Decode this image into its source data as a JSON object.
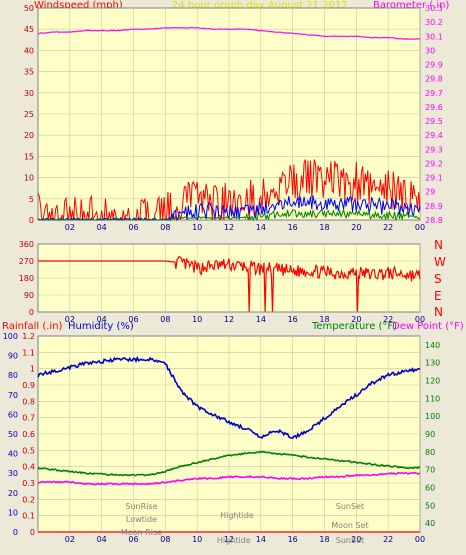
{
  "header": {
    "windspeed_label": "Windspeed (mph)",
    "title": "24 hour graph day  August 21 2017",
    "barometer_label": "Barometer (.in)"
  },
  "lower_header": {
    "rainfall_label": "Rainfall (.in)",
    "humidity_label": "Humidity (%)",
    "temperature_label": "Temperature (°F)",
    "dewpoint_label": "Dew Point (°F)"
  },
  "colors": {
    "plot_bg": "#FFFFC8",
    "panel_bg": "#ECE9D8",
    "grid": "#C8C8A0",
    "wind_gust": "#FF0000",
    "wind_avg": "#0000FF",
    "wind_low": "#008000",
    "barometer": "#FF00FF",
    "direction": "#FF0000",
    "humidity": "#0000C8",
    "temperature": "#008000",
    "dewpoint": "#FF00FF",
    "rain": "#FF0000"
  },
  "direction_labels": [
    "N",
    "W",
    "S",
    "E",
    "N"
  ],
  "chart_data": [
    {
      "type": "line",
      "x_ticks": [
        "02",
        "04",
        "06",
        "08",
        "10",
        "12",
        "14",
        "16",
        "18",
        "20",
        "22",
        "00"
      ],
      "y_left_ticks": [
        "0",
        "5",
        "10",
        "15",
        "20",
        "25",
        "30",
        "35",
        "40",
        "45",
        "50"
      ],
      "y_left_range": [
        0,
        50
      ],
      "y_right_ticks": [
        "28.8",
        "28.9",
        "29",
        "29.1",
        "29.2",
        "29.3",
        "29.4",
        "29.5",
        "29.6",
        "29.7",
        "29.8",
        "29.9",
        "30",
        "30.1",
        "30.2",
        "30.3"
      ],
      "y_right_range": [
        28.8,
        30.3
      ],
      "hours": [
        0,
        1,
        2,
        3,
        4,
        5,
        6,
        7,
        8,
        9,
        10,
        11,
        12,
        13,
        14,
        15,
        16,
        17,
        18,
        19,
        20,
        21,
        22,
        23,
        24
      ],
      "series": [
        {
          "values": [
            1.5,
            1.5,
            1.5,
            1.5,
            1.0,
            1.0,
            1.0,
            1.0,
            1.5,
            4.0,
            4.5,
            4.0,
            4.5,
            4.5,
            5.0,
            8.0,
            9.0,
            10.0,
            10.0,
            9.0,
            9.0,
            8.0,
            7.0,
            6.5,
            6.0
          ]
        },
        {
          "values": [
            0,
            0,
            0,
            0,
            0,
            0,
            0,
            0,
            0,
            1.5,
            2.0,
            2.0,
            2.0,
            2.0,
            2.5,
            3.5,
            4.0,
            4.0,
            4.0,
            3.5,
            3.5,
            3.5,
            3.0,
            3.0,
            2.5
          ]
        },
        {
          "values": [
            0,
            0,
            0,
            0,
            0,
            0,
            0,
            0,
            0,
            0.5,
            0.5,
            0.5,
            0.5,
            0.5,
            0.8,
            1.2,
            1.5,
            1.5,
            1.5,
            1.5,
            1.2,
            1.2,
            1.0,
            1.0,
            0.8
          ]
        },
        {
          "values": [
            30.12,
            30.13,
            30.13,
            30.14,
            30.14,
            30.14,
            30.15,
            30.15,
            30.16,
            30.16,
            30.16,
            30.15,
            30.15,
            30.15,
            30.14,
            30.13,
            30.12,
            30.11,
            30.1,
            30.1,
            30.1,
            30.09,
            30.09,
            30.08,
            30.08
          ]
        }
      ]
    },
    {
      "type": "line",
      "x_ticks": [
        "02",
        "04",
        "06",
        "08",
        "10",
        "12",
        "14",
        "16",
        "18",
        "20",
        "22",
        "00"
      ],
      "y_ticks": [
        "0",
        "90",
        "180",
        "270",
        "360"
      ],
      "y_range": [
        0,
        360
      ],
      "hours": [
        0,
        1,
        2,
        3,
        4,
        5,
        6,
        7,
        8,
        9,
        10,
        11,
        12,
        13,
        14,
        15,
        16,
        17,
        18,
        19,
        20,
        21,
        22,
        23,
        24
      ],
      "series": [
        {
          "values": [
            270,
            270,
            270,
            270,
            270,
            270,
            270,
            270,
            270,
            260,
            230,
            245,
            250,
            240,
            230,
            225,
            215,
            220,
            210,
            205,
            210,
            200,
            205,
            200,
            190
          ]
        }
      ]
    },
    {
      "type": "line",
      "x_ticks": [
        "02",
        "04",
        "06",
        "08",
        "10",
        "12",
        "14",
        "16",
        "18",
        "20",
        "22",
        "00"
      ],
      "y_left_ticks": [
        "0",
        "10",
        "20",
        "30",
        "40",
        "50",
        "60",
        "70",
        "80",
        "90",
        "100"
      ],
      "y_left_range": [
        0,
        100
      ],
      "y_rain_ticks": [
        "0",
        "0.1",
        "0.2",
        "0.3",
        "0.4",
        "0.5",
        "0.6",
        "0.7",
        "0.8",
        "0.9",
        "1",
        "1.1",
        "1.2"
      ],
      "y_rain_range": [
        0,
        1.2
      ],
      "y_right_ticks": [
        "40",
        "50",
        "60",
        "70",
        "80",
        "90",
        "100",
        "110",
        "120",
        "130",
        "140"
      ],
      "y_right_range": [
        35,
        145
      ],
      "hours": [
        0,
        1,
        2,
        3,
        4,
        5,
        6,
        7,
        8,
        9,
        10,
        11,
        12,
        13,
        14,
        15,
        16,
        17,
        18,
        19,
        20,
        21,
        22,
        23,
        24
      ],
      "series": [
        {
          "values": [
            80,
            82,
            84,
            86,
            87,
            88,
            88,
            88,
            86,
            72,
            64,
            60,
            56,
            53,
            48,
            52,
            48,
            52,
            58,
            64,
            70,
            76,
            80,
            82,
            83
          ]
        },
        {
          "values": [
            71,
            70,
            69,
            68,
            67.5,
            67,
            67,
            67,
            69,
            72,
            74,
            76,
            78,
            79,
            80,
            79,
            78,
            77,
            76,
            75,
            74,
            73,
            72,
            71,
            71
          ]
        },
        {
          "values": [
            63,
            63,
            63,
            62,
            62,
            62,
            62,
            62,
            63,
            64,
            65,
            65,
            66,
            66,
            66,
            65,
            65,
            65,
            66,
            66,
            67,
            67,
            68,
            68,
            68
          ]
        },
        {
          "values": [
            0,
            0,
            0,
            0,
            0,
            0,
            0,
            0,
            0,
            0,
            0,
            0,
            0,
            0,
            0,
            0,
            0,
            0,
            0,
            0,
            0,
            0,
            0,
            0,
            0
          ]
        }
      ],
      "annotations": {
        "sunrise": "SunRise",
        "lowtide": "Lowtide",
        "moonrise": "Moon Rise",
        "hightide_1": "Hightide",
        "hightide_2": "Hightide",
        "sunset_1": "SunSet",
        "moonset": "Moon Set",
        "sunset_2": "SunSet"
      }
    }
  ]
}
